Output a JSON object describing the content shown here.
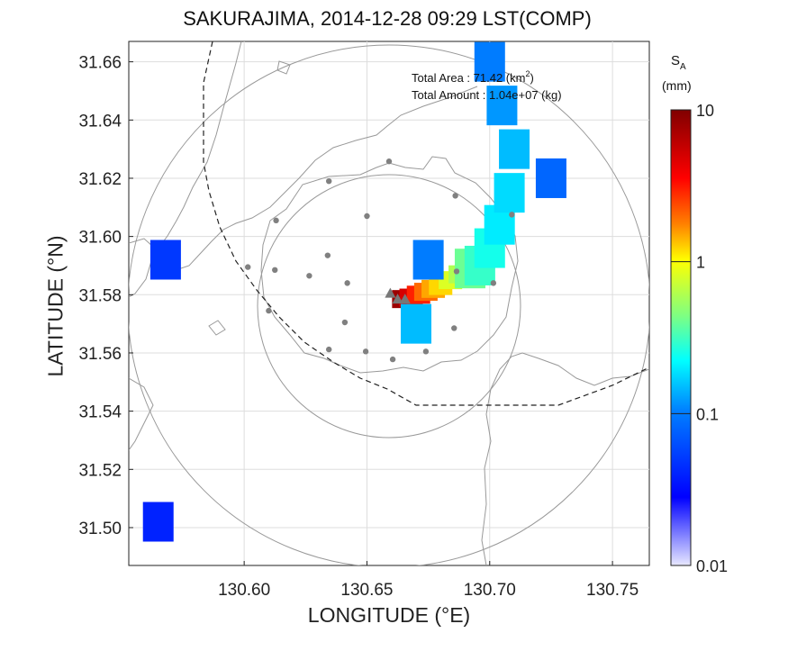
{
  "title": "SAKURAJIMA, 2014-12-28 09:29 LST(COMP)",
  "xlabel": "LONGITUDE (°E)",
  "ylabel": "LATITUDE (°N)",
  "annotation": {
    "area_label": "Total Area   : 71.42 (km",
    "area_sup": "2",
    "area_close": ")",
    "amount_label": "Total Amount : 1.04e+07 (kg)"
  },
  "colorbar": {
    "title_main": "S",
    "title_sub": "A",
    "unit": "(mm)",
    "scale": "log",
    "ticks": [
      "10",
      "1",
      "0.1",
      "0.01"
    ],
    "colors": [
      "#800000",
      "#ff0000",
      "#ff8000",
      "#ffff00",
      "#80ff80",
      "#00ffff",
      "#0080ff",
      "#0000ff",
      "#e8e8ff"
    ]
  },
  "chart_data": {
    "type": "heatmap",
    "title": "SAKURAJIMA, 2014-12-28 09:29 LST(COMP)",
    "xlabel": "LONGITUDE (°E)",
    "ylabel": "LATITUDE (°N)",
    "xlim": [
      130.553,
      130.765
    ],
    "ylim": [
      31.487,
      31.667
    ],
    "xticks": [
      "130.60",
      "130.65",
      "130.70",
      "130.75"
    ],
    "yticks": [
      "31.66",
      "31.64",
      "31.62",
      "31.60",
      "31.58",
      "31.56",
      "31.54",
      "31.52",
      "31.50"
    ],
    "grid": true,
    "colorbar_range": [
      0.01,
      10
    ],
    "total_area_km2": 71.42,
    "total_amount_kg": 10400000.0,
    "vent_markers": [
      {
        "lon": 130.6595,
        "lat": 31.5805
      },
      {
        "lon": 130.6625,
        "lat": 31.5785
      },
      {
        "lon": 130.6655,
        "lat": 31.5785
      }
    ],
    "stations": [
      [
        130.659,
        31.6258
      ],
      [
        130.6345,
        31.619
      ],
      [
        130.613,
        31.6055
      ],
      [
        130.65,
        31.607
      ],
      [
        130.6015,
        31.5895
      ],
      [
        130.6125,
        31.5885
      ],
      [
        130.6265,
        31.5865
      ],
      [
        130.634,
        31.5935
      ],
      [
        130.642,
        31.584
      ],
      [
        130.6865,
        31.588
      ],
      [
        130.686,
        31.614
      ],
      [
        130.709,
        31.6075
      ],
      [
        130.7015,
        31.584
      ],
      [
        130.61,
        31.5745
      ],
      [
        130.641,
        31.5705
      ],
      [
        130.6855,
        31.5685
      ],
      [
        130.6345,
        31.5612
      ],
      [
        130.6495,
        31.5605
      ],
      [
        130.6605,
        31.5578
      ],
      [
        130.674,
        31.5605
      ]
    ],
    "plume_cells": [
      {
        "lon": 130.665,
        "lat": 31.5785,
        "value": 8.0
      },
      {
        "lon": 130.668,
        "lat": 31.579,
        "value": 5.0
      },
      {
        "lon": 130.671,
        "lat": 31.58,
        "value": 3.0
      },
      {
        "lon": 130.674,
        "lat": 31.581,
        "value": 2.0
      },
      {
        "lon": 130.677,
        "lat": 31.582,
        "value": 1.5
      },
      {
        "lon": 130.68,
        "lat": 31.583,
        "value": 1.2
      },
      {
        "lon": 130.684,
        "lat": 31.585,
        "value": 0.8
      },
      {
        "lon": 130.688,
        "lat": 31.587,
        "value": 0.6
      },
      {
        "lon": 130.692,
        "lat": 31.589,
        "value": 0.4
      },
      {
        "lon": 130.696,
        "lat": 31.59,
        "value": 0.3
      },
      {
        "lon": 130.7,
        "lat": 31.596,
        "value": 0.25
      },
      {
        "lon": 130.704,
        "lat": 31.604,
        "value": 0.2
      },
      {
        "lon": 130.708,
        "lat": 31.615,
        "value": 0.18
      },
      {
        "lon": 130.71,
        "lat": 31.63,
        "value": 0.15
      },
      {
        "lon": 130.705,
        "lat": 31.645,
        "value": 0.12
      },
      {
        "lon": 130.7,
        "lat": 31.66,
        "value": 0.1
      },
      {
        "lon": 130.725,
        "lat": 31.62,
        "value": 0.08
      },
      {
        "lon": 130.675,
        "lat": 31.592,
        "value": 0.1
      },
      {
        "lon": 130.67,
        "lat": 31.57,
        "value": 0.15
      },
      {
        "lon": 130.568,
        "lat": 31.592,
        "value": 0.05
      },
      {
        "lon": 130.565,
        "lat": 31.502,
        "value": 0.04
      }
    ]
  }
}
